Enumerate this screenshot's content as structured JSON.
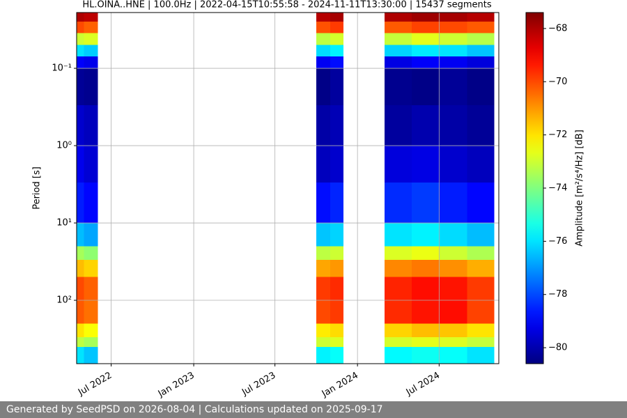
{
  "chart_data": {
    "type": "heatmap",
    "title": "HL.OINA..HNE | 100.0Hz | 2022-04-15T10:55:58 - 2024-11-11T13:30:00 | 15437 segments",
    "ylabel": "Period [s]",
    "colorbar_label": "Amplitude [m²/s⁴/Hz] [dB]",
    "x": [
      "2022-04",
      "2022-05",
      "2022-06",
      "2023-10",
      "2023-11",
      "2023-12",
      "2024-03",
      "2024-05",
      "2024-07",
      "2024-09",
      "2024-11"
    ],
    "y": [
      0.019,
      0.025,
      0.035,
      0.05,
      0.07,
      0.1,
      0.3,
      1,
      3,
      10,
      20,
      30,
      50,
      100,
      200,
      300,
      400,
      660
    ],
    "values": [
      [
        -68,
        -68.2,
        null,
        -68.1,
        -67.9,
        null,
        -68,
        -67.8,
        -67.9,
        -68.1
      ],
      [
        -70,
        -70.3,
        null,
        -70.1,
        -69.8,
        null,
        -70.2,
        -69.9,
        -70,
        -70.2
      ],
      [
        -73,
        -72.8,
        null,
        -73.2,
        -72.9,
        null,
        -73.1,
        -72.7,
        -73,
        -73.3
      ],
      [
        -76,
        -76.3,
        null,
        -76.1,
        -75.8,
        null,
        -76.2,
        -75.9,
        -76,
        -76.4
      ],
      [
        -79,
        -79.2,
        null,
        -79.1,
        -78.8,
        null,
        -79.3,
        -79,
        -79.1,
        -79.4
      ],
      [
        -80.3,
        -80.4,
        null,
        -80.5,
        -80.2,
        null,
        -80.4,
        -80.5,
        -80.3,
        -80.5
      ],
      [
        -79.6,
        -79.8,
        null,
        -80.1,
        -79.9,
        null,
        -80.2,
        -80,
        -80.1,
        -80.3
      ],
      [
        -79.2,
        -79.5,
        null,
        -79.8,
        -79.6,
        null,
        -79.4,
        -79.3,
        -79.6,
        -79.8
      ],
      [
        -78.6,
        -78.9,
        null,
        -78.8,
        -78.5,
        null,
        -78.4,
        -78.2,
        -78.6,
        -78.9
      ],
      [
        -76.5,
        -76.8,
        null,
        -76.4,
        -76.2,
        null,
        -76,
        -75.8,
        -76.1,
        -76.5
      ],
      [
        -73.5,
        -73.8,
        null,
        -73.2,
        -73,
        null,
        -72.8,
        -72.6,
        -73,
        -73.4
      ],
      [
        -71.5,
        -71.8,
        null,
        -71.2,
        -71,
        null,
        -70.8,
        -70.6,
        -70.9,
        -71.3
      ],
      [
        -70,
        -70.3,
        null,
        -69.8,
        -69.6,
        null,
        -69.5,
        -69.2,
        -69.3,
        -69.8
      ],
      [
        -70.2,
        -70.5,
        null,
        -70,
        -69.8,
        null,
        -69.6,
        -69.3,
        -69.2,
        -69.9
      ],
      [
        -72,
        -72.4,
        null,
        -72.1,
        -71.9,
        null,
        -71.8,
        -71.5,
        -71.6,
        -72
      ],
      [
        -73.2,
        -73.5,
        null,
        -73,
        -72.8,
        null,
        -72.9,
        -72.7,
        -72.8,
        -73.1
      ],
      [
        -76,
        -76.4,
        null,
        -75.8,
        -75.6,
        null,
        -75.7,
        -75.5,
        -75.6,
        -76
      ]
    ],
    "xlim": [
      "2022-04-15",
      "2024-11-11"
    ],
    "xticks": [
      {
        "value": "2022-07",
        "label": "Jul 2022"
      },
      {
        "value": "2023-01",
        "label": "Jan 2023"
      },
      {
        "value": "2023-07",
        "label": "Jul 2023"
      },
      {
        "value": "2024-01",
        "label": "Jan 2024"
      },
      {
        "value": "2024-07",
        "label": "Jul 2024"
      }
    ],
    "ylim": [
      0.019,
      660
    ],
    "yscale": "log",
    "y_inverted": true,
    "yticks": [
      {
        "value": 0.1,
        "label": "10⁻¹"
      },
      {
        "value": 1,
        "label": "10⁰"
      },
      {
        "value": 10,
        "label": "10¹"
      },
      {
        "value": 100,
        "label": "10²"
      }
    ],
    "colormap": "jet",
    "clim": [
      -80.6,
      -67.4
    ],
    "cticks": [
      {
        "value": -68,
        "label": "−68"
      },
      {
        "value": -70,
        "label": "−70"
      },
      {
        "value": -72,
        "label": "−72"
      },
      {
        "value": -74,
        "label": "−74"
      },
      {
        "value": -76,
        "label": "−76"
      },
      {
        "value": -78,
        "label": "−78"
      },
      {
        "value": -80,
        "label": "−80"
      }
    ],
    "grid": true
  },
  "footer": "Generated by SeedPSD on 2026-08-04 | Calculations updated on 2025-09-17"
}
